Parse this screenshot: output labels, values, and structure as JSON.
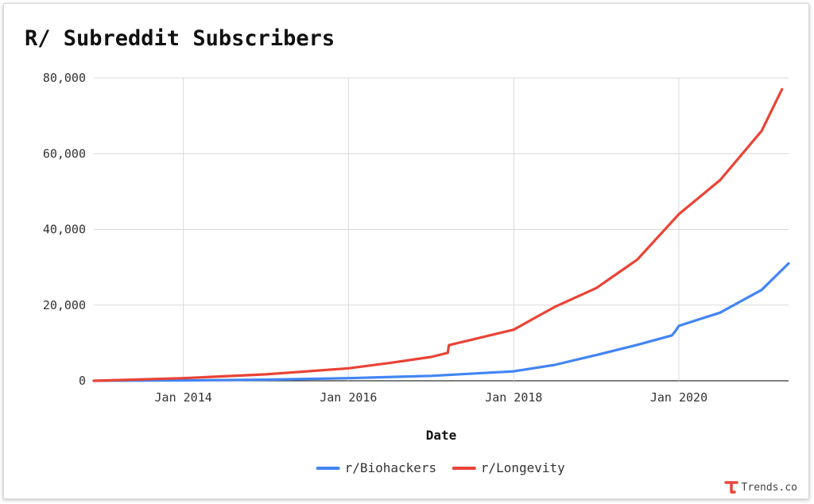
{
  "chart_data": {
    "type": "line",
    "title": "R/ Subreddit Subscribers",
    "xlabel": "Date",
    "ylabel": "",
    "x_axis": "date",
    "xlim": [
      "2012-12-01",
      "2021-04-30"
    ],
    "ylim": [
      0,
      80000
    ],
    "y_ticks": [
      0,
      20000,
      40000,
      60000,
      80000
    ],
    "y_tick_labels": [
      "0",
      "20,000",
      "40,000",
      "60,000",
      "80,000"
    ],
    "x_ticks": [
      "2014-01-01",
      "2016-01-01",
      "2018-01-01",
      "2020-01-01"
    ],
    "x_tick_labels": [
      "Jan 2014",
      "Jan 2016",
      "Jan 2018",
      "Jan 2020"
    ],
    "grid": true,
    "legend_position": "bottom",
    "series": [
      {
        "name": "r/Biohackers",
        "color": "#4285f4",
        "points": [
          [
            "2012-12-01",
            0
          ],
          [
            "2014-01-01",
            100
          ],
          [
            "2015-01-01",
            300
          ],
          [
            "2016-01-01",
            700
          ],
          [
            "2017-01-01",
            1300
          ],
          [
            "2018-01-01",
            2500
          ],
          [
            "2018-07-01",
            4200
          ],
          [
            "2019-01-01",
            6800
          ],
          [
            "2019-07-01",
            9500
          ],
          [
            "2019-12-01",
            12000
          ],
          [
            "2019-12-15",
            13000
          ],
          [
            "2020-01-01",
            14500
          ],
          [
            "2020-07-01",
            18000
          ],
          [
            "2021-01-01",
            24000
          ],
          [
            "2021-04-30",
            31000
          ]
        ]
      },
      {
        "name": "r/Longevity",
        "color": "#ea4335",
        "points": [
          [
            "2012-12-01",
            0
          ],
          [
            "2014-01-01",
            700
          ],
          [
            "2015-01-01",
            1700
          ],
          [
            "2016-01-01",
            3300
          ],
          [
            "2016-07-01",
            4700
          ],
          [
            "2017-01-01",
            6300
          ],
          [
            "2017-03-15",
            7400
          ],
          [
            "2017-03-20",
            9400
          ],
          [
            "2018-01-01",
            13500
          ],
          [
            "2018-04-01",
            16500
          ],
          [
            "2018-07-01",
            19500
          ],
          [
            "2019-01-01",
            24500
          ],
          [
            "2019-07-01",
            32000
          ],
          [
            "2020-01-01",
            44000
          ],
          [
            "2020-07-01",
            53000
          ],
          [
            "2021-01-01",
            66000
          ],
          [
            "2021-04-01",
            77000
          ]
        ]
      }
    ]
  },
  "brand": {
    "text": "Trends.co",
    "color": "#e8453c"
  }
}
